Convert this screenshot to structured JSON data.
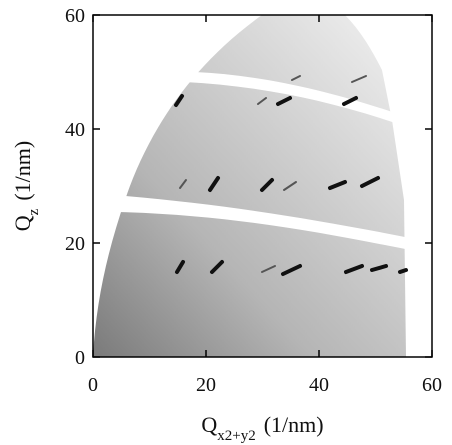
{
  "chart_data": {
    "type": "image",
    "x_label": {
      "symbol": "Q",
      "subscript": "x2+y2",
      "unit": "(1/nm)"
    },
    "y_label": {
      "symbol": "Q",
      "subscript": "z",
      "unit": "(1/nm)"
    },
    "xlim": [
      0,
      60
    ],
    "ylim": [
      0,
      60
    ],
    "xticks": [
      0,
      20,
      40,
      60
    ],
    "yticks": [
      0,
      20,
      40,
      60
    ]
  }
}
